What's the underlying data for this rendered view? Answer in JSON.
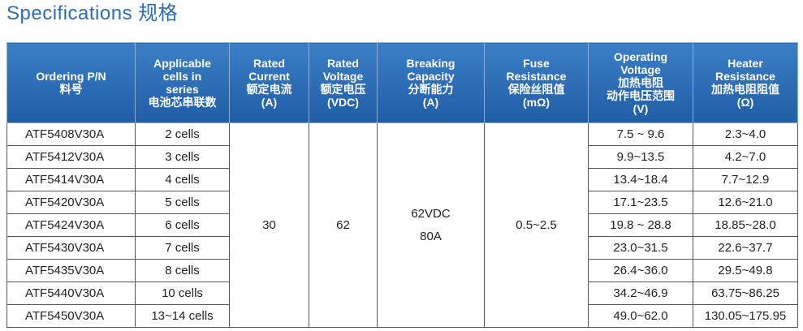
{
  "title": "Specifications 规格",
  "table": {
    "header": [
      [
        "Ordering P/N",
        "料号"
      ],
      [
        "Applicable",
        "cells in",
        "series",
        "电池芯串联数"
      ],
      [
        "Rated",
        "Current",
        "额定电流",
        "(A)"
      ],
      [
        "Rated",
        "Voltage",
        "额定电压",
        "(VDC)"
      ],
      [
        "Breaking",
        "Capacity",
        "分断能力",
        "(A)"
      ],
      [
        "Fuse",
        "Resistance",
        "保险丝阻值",
        "(mΩ)"
      ],
      [
        "Operating",
        "Voltage",
        "加热电阻",
        "动作电压范围",
        "(V)"
      ],
      [
        "Heater",
        "Resistance",
        "加热电阻阻值",
        "(Ω)"
      ]
    ],
    "rows": [
      [
        "ATF5408V30A",
        "2 cells",
        "7.5 ~ 9.6",
        "2.3~4.0"
      ],
      [
        "ATF5412V30A",
        "3 cells",
        "9.9~13.5",
        "4.2~7.0"
      ],
      [
        "ATF5414V30A",
        "4 cells",
        "13.4~18.4",
        "7.7~12.9"
      ],
      [
        "ATF5420V30A",
        "5 cells",
        "17.1~23.5",
        "12.6~21.0"
      ],
      [
        "ATF5424V30A",
        "6 cells",
        "19.8 ~ 28.8",
        "18.85~28.0"
      ],
      [
        "ATF5430V30A",
        "7 cells",
        "23.0~31.5",
        "22.6~37.7"
      ],
      [
        "ATF5435V30A",
        "8 cells",
        "26.4~36.0",
        "29.5~49.8"
      ],
      [
        "ATF5440V30A",
        "10 cells",
        "34.2~46.9",
        "63.75~86.25"
      ],
      [
        "ATF5450V30A",
        "13~14 cells",
        "49.0~62.0",
        "130.05~175.95"
      ]
    ],
    "shared": {
      "current": "30",
      "voltage": "62",
      "breaking": [
        "62VDC",
        "80A"
      ],
      "fuse": "0.5~2.5"
    }
  }
}
